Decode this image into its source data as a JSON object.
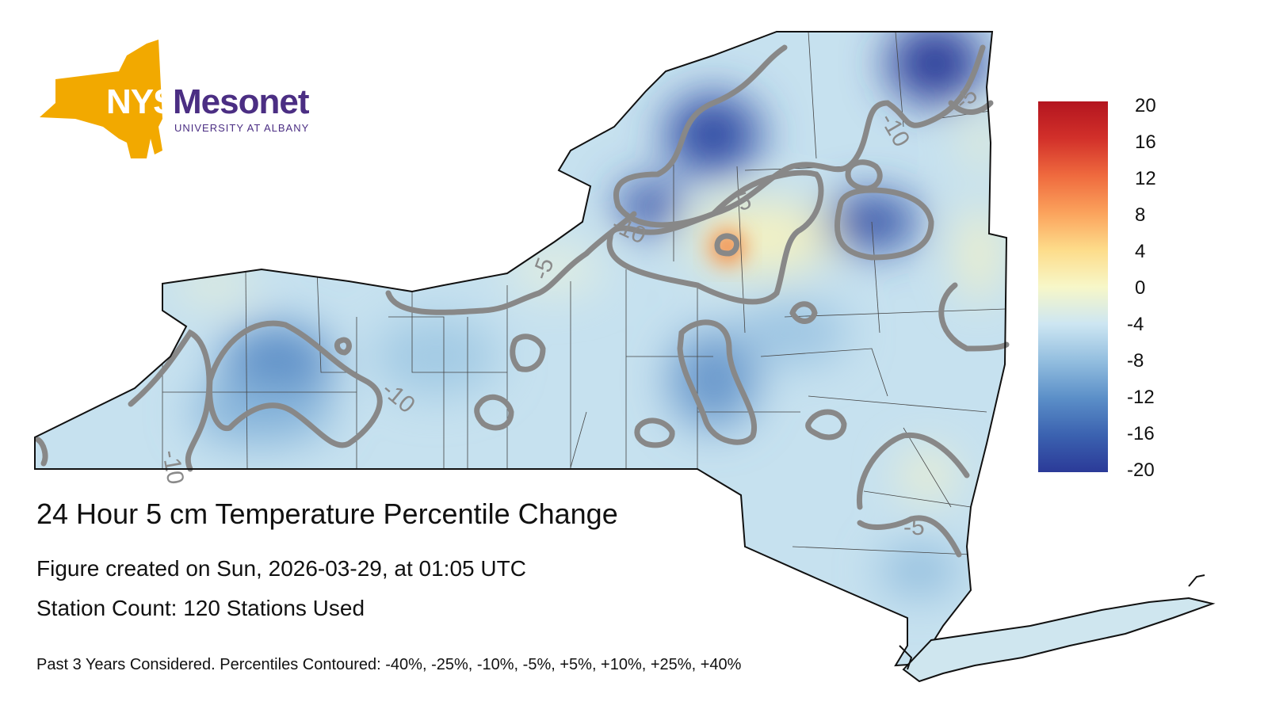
{
  "logo": {
    "nys_text": "NYS",
    "mesonet_text": "Mesonet",
    "university_text": "UNIVERSITY AT ALBANY",
    "gold_color": "#f2a900",
    "purple_color": "#4b2e83"
  },
  "title": "24 Hour 5 cm Temperature Percentile Change",
  "created_text": "Figure created on Sun, 2026-03-29, at 01:05 UTC",
  "station_count_text": "Station Count: 120 Stations Used",
  "footer_text": "Past 3 Years Considered. Percentiles Contoured: -40%, -25%, -10%, -5%, +5%, +10%, +25%, +40%",
  "colorbar": {
    "ticks": [
      "20",
      "16",
      "12",
      "8",
      "4",
      "0",
      "-4",
      "-8",
      "-12",
      "-16",
      "-20"
    ],
    "colors": [
      "#2b3a98",
      "#3b62b0",
      "#5b8fc8",
      "#93bedf",
      "#cde6f2",
      "#f7f7c8",
      "#fddc8a",
      "#fba25c",
      "#ef6a3e",
      "#d2302a",
      "#b3151f"
    ]
  },
  "contour_labels": [
    "-5",
    "-10",
    "-10",
    "-5",
    "-10",
    "-5",
    "-10",
    "-10",
    "-5",
    "-5"
  ]
}
